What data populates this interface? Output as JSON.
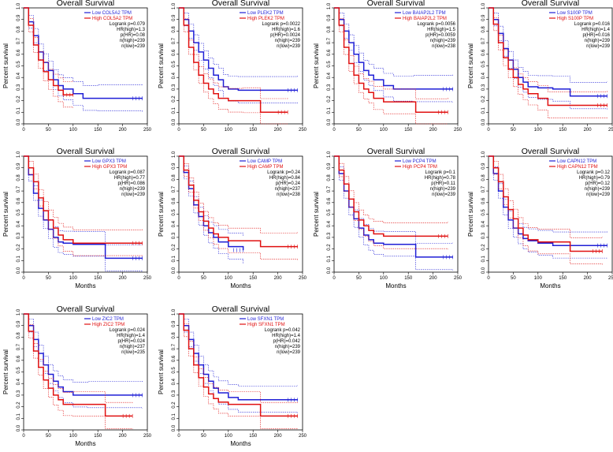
{
  "colors": {
    "low": "#1f1fd6",
    "high": "#e01010",
    "axis": "#000000"
  },
  "chart_data": [
    {
      "type": "line",
      "title": "Overall Survival",
      "xlabel": "",
      "ylabel": "Percent survival",
      "xlim": [
        0,
        240
      ],
      "ylim": [
        0,
        1
      ],
      "xticks": [
        "0",
        "50",
        "100",
        "150",
        "200",
        "250"
      ],
      "yticks": [
        "0.0",
        "0.1",
        "0.2",
        "0.3",
        "0.4",
        "0.5",
        "0.6",
        "0.7",
        "0.8",
        "0.9",
        "1.0"
      ],
      "legend": [
        "Low COL5A2 TPM",
        "High COL5A2 TPM"
      ],
      "stats": [
        "Logrank p=0.079",
        "HR(high)=1.3",
        "p(HR)=0.08",
        "n(high)=239",
        "n(low)=239"
      ],
      "series": [
        {
          "name": "Low COL5A2 TPM",
          "x": [
            0,
            10,
            20,
            30,
            40,
            50,
            60,
            70,
            80,
            100,
            120,
            150,
            240
          ],
          "y": [
            1,
            0.88,
            0.76,
            0.62,
            0.53,
            0.46,
            0.38,
            0.33,
            0.3,
            0.26,
            0.22,
            0.22,
            0.22
          ]
        },
        {
          "name": "High COL5A2 TPM",
          "x": [
            0,
            10,
            20,
            30,
            40,
            50,
            60,
            70,
            80,
            100
          ],
          "y": [
            1,
            0.85,
            0.68,
            0.55,
            0.45,
            0.38,
            0.33,
            0.29,
            0.25,
            0.25
          ]
        }
      ]
    },
    {
      "type": "line",
      "title": "Overall Survival",
      "xlabel": "",
      "ylabel": "Percent survival",
      "xlim": [
        0,
        240
      ],
      "ylim": [
        0,
        1
      ],
      "xticks": [
        "0",
        "50",
        "100",
        "150",
        "200",
        "250"
      ],
      "yticks": [
        "0.0",
        "0.1",
        "0.2",
        "0.3",
        "0.4",
        "0.5",
        "0.6",
        "0.7",
        "0.8",
        "0.9",
        "1.0"
      ],
      "legend": [
        "Low PLEK2 TPM",
        "High PLEK2 TPM"
      ],
      "stats": [
        "Logrank p=0.0022",
        "HR(high)=1.6",
        "p(HR)=0.0024",
        "n(high)=239",
        "n(low)=239"
      ],
      "series": [
        {
          "name": "Low PLEK2 TPM",
          "x": [
            0,
            10,
            20,
            30,
            40,
            50,
            60,
            70,
            80,
            90,
            100,
            120,
            240
          ],
          "y": [
            1,
            0.9,
            0.8,
            0.7,
            0.62,
            0.55,
            0.48,
            0.42,
            0.38,
            0.32,
            0.3,
            0.29,
            0.29
          ]
        },
        {
          "name": "High PLEK2 TPM",
          "x": [
            0,
            10,
            20,
            30,
            40,
            50,
            60,
            70,
            80,
            100,
            130,
            165,
            220
          ],
          "y": [
            1,
            0.85,
            0.66,
            0.53,
            0.42,
            0.35,
            0.3,
            0.26,
            0.22,
            0.2,
            0.2,
            0.1,
            0.1
          ]
        }
      ]
    },
    {
      "type": "line",
      "title": "Overall Survival",
      "xlabel": "",
      "ylabel": "Percent survival",
      "xlim": [
        0,
        240
      ],
      "ylim": [
        0,
        1
      ],
      "xticks": [
        "0",
        "50",
        "100",
        "150",
        "200",
        "250"
      ],
      "yticks": [
        "0.0",
        "0.1",
        "0.2",
        "0.3",
        "0.4",
        "0.5",
        "0.6",
        "0.7",
        "0.8",
        "0.9",
        "1.0"
      ],
      "legend": [
        "Low BAIAP2L2 TPM",
        "High BAIAP2L2 TPM"
      ],
      "stats": [
        "Logrank p=0.0056",
        "HR(high)=1.5",
        "p(HR)=0.0059",
        "n(high)=239",
        "n(low)=238"
      ],
      "series": [
        {
          "name": "Low BAIAP2L2 TPM",
          "x": [
            0,
            10,
            20,
            30,
            40,
            50,
            60,
            70,
            80,
            100,
            120,
            160,
            240
          ],
          "y": [
            1,
            0.9,
            0.8,
            0.7,
            0.6,
            0.53,
            0.46,
            0.42,
            0.38,
            0.33,
            0.3,
            0.3,
            0.3
          ]
        },
        {
          "name": "High BAIAP2L2 TPM",
          "x": [
            0,
            10,
            20,
            30,
            40,
            50,
            60,
            70,
            80,
            100,
            165,
            230
          ],
          "y": [
            1,
            0.85,
            0.66,
            0.52,
            0.42,
            0.35,
            0.3,
            0.27,
            0.22,
            0.19,
            0.1,
            0.1
          ]
        }
      ]
    },
    {
      "type": "line",
      "title": "Overall Survival",
      "xlabel": "",
      "ylabel": "Percent survival",
      "xlim": [
        0,
        240
      ],
      "ylim": [
        0,
        1
      ],
      "xticks": [
        "0",
        "50",
        "100",
        "150",
        "200",
        "250"
      ],
      "yticks": [
        "0.0",
        "0.1",
        "0.2",
        "0.3",
        "0.4",
        "0.5",
        "0.6",
        "0.7",
        "0.8",
        "0.9",
        "1.0"
      ],
      "legend": [
        "Low S100P TPM",
        "High S100P TPM"
      ],
      "stats": [
        "Logrank p=0.016",
        "HR(high)=1.4",
        "p(HR)=0.016",
        "n(high)=239",
        "n(low)=239"
      ],
      "series": [
        {
          "name": "Low S100P TPM",
          "x": [
            0,
            10,
            20,
            30,
            40,
            50,
            60,
            70,
            80,
            100,
            130,
            165,
            240
          ],
          "y": [
            1,
            0.9,
            0.78,
            0.65,
            0.55,
            0.47,
            0.4,
            0.36,
            0.32,
            0.31,
            0.3,
            0.24,
            0.24
          ]
        },
        {
          "name": "High S100P TPM",
          "x": [
            0,
            10,
            20,
            30,
            40,
            50,
            60,
            70,
            80,
            100,
            120,
            240
          ],
          "y": [
            1,
            0.86,
            0.7,
            0.57,
            0.47,
            0.4,
            0.34,
            0.3,
            0.26,
            0.22,
            0.16,
            0.16
          ]
        }
      ]
    },
    {
      "type": "line",
      "title": "Overall Survival",
      "xlabel": "Months",
      "ylabel": "Percent survival",
      "xlim": [
        0,
        240
      ],
      "ylim": [
        0,
        1
      ],
      "xticks": [
        "0",
        "50",
        "100",
        "150",
        "200",
        "250"
      ],
      "yticks": [
        "0.0",
        "0.1",
        "0.2",
        "0.3",
        "0.4",
        "0.5",
        "0.6",
        "0.7",
        "0.8",
        "0.9",
        "1.0"
      ],
      "legend": [
        "Low GPX3 TPM",
        "High GPX3 TPM"
      ],
      "stats": [
        "Logrank p=0.087",
        "HR(high)=0.77",
        "p(HR)=0.086",
        "n(high)=239",
        "n(low)=239"
      ],
      "series": [
        {
          "name": "Low GPX3 TPM",
          "x": [
            0,
            10,
            20,
            30,
            40,
            50,
            60,
            70,
            80,
            100,
            165,
            240
          ],
          "y": [
            1,
            0.84,
            0.68,
            0.55,
            0.45,
            0.37,
            0.3,
            0.26,
            0.25,
            0.24,
            0.12,
            0.12
          ]
        },
        {
          "name": "High GPX3 TPM",
          "x": [
            0,
            10,
            20,
            30,
            40,
            50,
            60,
            70,
            80,
            100,
            240
          ],
          "y": [
            1,
            0.9,
            0.78,
            0.64,
            0.53,
            0.45,
            0.38,
            0.32,
            0.28,
            0.25,
            0.25
          ]
        }
      ]
    },
    {
      "type": "line",
      "title": "Overall Survival",
      "xlabel": "Months",
      "ylabel": "Percent survival",
      "xlim": [
        0,
        240
      ],
      "ylim": [
        0,
        1
      ],
      "xticks": [
        "0",
        "50",
        "100",
        "150",
        "200",
        "250"
      ],
      "yticks": [
        "0.0",
        "0.1",
        "0.2",
        "0.3",
        "0.4",
        "0.5",
        "0.6",
        "0.7",
        "0.8",
        "0.9",
        "1.0"
      ],
      "legend": [
        "Low CAMP TPM",
        "High CAMP TPM"
      ],
      "stats": [
        "Logrank p=0.24",
        "HR(high)=0.84",
        "p(HR)=0.24",
        "n(high)=237",
        "n(low)=238"
      ],
      "series": [
        {
          "name": "Low CAMP TPM",
          "x": [
            0,
            10,
            20,
            30,
            40,
            50,
            60,
            70,
            80,
            100,
            130
          ],
          "y": [
            1,
            0.86,
            0.72,
            0.58,
            0.48,
            0.4,
            0.34,
            0.3,
            0.26,
            0.22,
            0.19
          ]
        },
        {
          "name": "High CAMP TPM",
          "x": [
            0,
            10,
            20,
            30,
            40,
            50,
            60,
            70,
            80,
            100,
            165,
            240
          ],
          "y": [
            1,
            0.88,
            0.75,
            0.62,
            0.52,
            0.44,
            0.38,
            0.33,
            0.3,
            0.27,
            0.22,
            0.22
          ]
        }
      ]
    },
    {
      "type": "line",
      "title": "Overall Survival",
      "xlabel": "Months",
      "ylabel": "Percent survival",
      "xlim": [
        0,
        240
      ],
      "ylim": [
        0,
        1
      ],
      "xticks": [
        "0",
        "50",
        "100",
        "150",
        "200",
        "250"
      ],
      "yticks": [
        "0.0",
        "0.1",
        "0.2",
        "0.3",
        "0.4",
        "0.5",
        "0.6",
        "0.7",
        "0.8",
        "0.9",
        "1.0"
      ],
      "legend": [
        "Low PCP4 TPM",
        "High PCP4 TPM"
      ],
      "stats": [
        "Logrank p=0.1",
        "HR(high)=0.78",
        "p(HR)=0.11",
        "n(high)=239",
        "n(low)=239"
      ],
      "series": [
        {
          "name": "Low PCP4 TPM",
          "x": [
            0,
            10,
            20,
            30,
            40,
            50,
            60,
            70,
            80,
            100,
            165,
            240
          ],
          "y": [
            1,
            0.85,
            0.7,
            0.56,
            0.46,
            0.38,
            0.32,
            0.28,
            0.25,
            0.24,
            0.13,
            0.13
          ]
        },
        {
          "name": "High PCP4 TPM",
          "x": [
            0,
            10,
            20,
            30,
            40,
            50,
            60,
            70,
            80,
            100,
            230
          ],
          "y": [
            1,
            0.88,
            0.76,
            0.63,
            0.52,
            0.45,
            0.4,
            0.36,
            0.33,
            0.31,
            0.31
          ]
        }
      ]
    },
    {
      "type": "line",
      "title": "Overall Survival",
      "xlabel": "Months",
      "ylabel": "Percent survival",
      "xlim": [
        0,
        240
      ],
      "ylim": [
        0,
        1
      ],
      "xticks": [
        "0",
        "50",
        "100",
        "150",
        "200",
        "250"
      ],
      "yticks": [
        "0.0",
        "0.1",
        "0.2",
        "0.3",
        "0.4",
        "0.5",
        "0.6",
        "0.7",
        "0.8",
        "0.9",
        "1.0"
      ],
      "legend": [
        "Low CAPN12 TPM",
        "High CAPN12 TPM"
      ],
      "stats": [
        "Logrank p=0.12",
        "HR(high)=0.79",
        "p(HR)=0.12",
        "n(high)=239",
        "n(low)=239"
      ],
      "series": [
        {
          "name": "Low CAPN12 TPM",
          "x": [
            0,
            10,
            20,
            30,
            40,
            50,
            60,
            70,
            80,
            100,
            130,
            240
          ],
          "y": [
            1,
            0.85,
            0.7,
            0.56,
            0.45,
            0.38,
            0.33,
            0.29,
            0.27,
            0.25,
            0.23,
            0.23
          ]
        },
        {
          "name": "High CAPN12 TPM",
          "x": [
            0,
            10,
            20,
            30,
            40,
            50,
            60,
            70,
            80,
            100,
            165,
            230
          ],
          "y": [
            1,
            0.9,
            0.78,
            0.65,
            0.54,
            0.46,
            0.38,
            0.32,
            0.28,
            0.26,
            0.18,
            0.18
          ]
        }
      ]
    },
    {
      "type": "line",
      "title": "Overall Survival",
      "xlabel": "Months",
      "ylabel": "Percent survival",
      "xlim": [
        0,
        240
      ],
      "ylim": [
        0,
        1
      ],
      "xticks": [
        "0",
        "50",
        "100",
        "150",
        "200",
        "250"
      ],
      "yticks": [
        "0.0",
        "0.1",
        "0.2",
        "0.3",
        "0.4",
        "0.5",
        "0.6",
        "0.7",
        "0.8",
        "0.9",
        "1.0"
      ],
      "legend": [
        "Low ZIC2 TPM",
        "High ZIC2 TPM"
      ],
      "stats": [
        "Logrank p=0.024",
        "HR(high)=1.4",
        "p(HR)=0.024",
        "n(high)=237",
        "n(low)=235"
      ],
      "series": [
        {
          "name": "Low ZIC2 TPM",
          "x": [
            0,
            10,
            20,
            30,
            40,
            50,
            60,
            70,
            80,
            100,
            130,
            240
          ],
          "y": [
            1,
            0.9,
            0.78,
            0.66,
            0.56,
            0.48,
            0.42,
            0.37,
            0.33,
            0.3,
            0.3,
            0.3
          ]
        },
        {
          "name": "High ZIC2 TPM",
          "x": [
            0,
            10,
            20,
            30,
            40,
            50,
            60,
            70,
            80,
            100,
            165,
            220
          ],
          "y": [
            1,
            0.85,
            0.68,
            0.54,
            0.43,
            0.36,
            0.3,
            0.26,
            0.22,
            0.22,
            0.12,
            0.12
          ]
        }
      ]
    },
    {
      "type": "line",
      "title": "Overall Survival",
      "xlabel": "Months",
      "ylabel": "Percent survival",
      "xlim": [
        0,
        240
      ],
      "ylim": [
        0,
        1
      ],
      "xticks": [
        "0",
        "50",
        "100",
        "150",
        "200",
        "250"
      ],
      "yticks": [
        "0.0",
        "0.1",
        "0.2",
        "0.3",
        "0.4",
        "0.5",
        "0.6",
        "0.7",
        "0.8",
        "0.9",
        "1.0"
      ],
      "legend": [
        "Low SFXN1 TPM",
        "High SFXN1 TPM"
      ],
      "stats": [
        "Logrank p=0.042",
        "HR(high)=1.4",
        "p(HR)=0.042",
        "n(high)=239",
        "n(low)=239"
      ],
      "series": [
        {
          "name": "Low SFXN1 TPM",
          "x": [
            0,
            10,
            20,
            30,
            40,
            50,
            60,
            70,
            80,
            100,
            120,
            240
          ],
          "y": [
            1,
            0.9,
            0.78,
            0.66,
            0.56,
            0.48,
            0.42,
            0.36,
            0.32,
            0.28,
            0.26,
            0.26
          ]
        },
        {
          "name": "High SFXN1 TPM",
          "x": [
            0,
            10,
            20,
            30,
            40,
            50,
            60,
            70,
            80,
            100,
            165,
            240
          ],
          "y": [
            1,
            0.86,
            0.7,
            0.56,
            0.45,
            0.37,
            0.31,
            0.27,
            0.24,
            0.22,
            0.12,
            0.12
          ]
        }
      ]
    }
  ]
}
